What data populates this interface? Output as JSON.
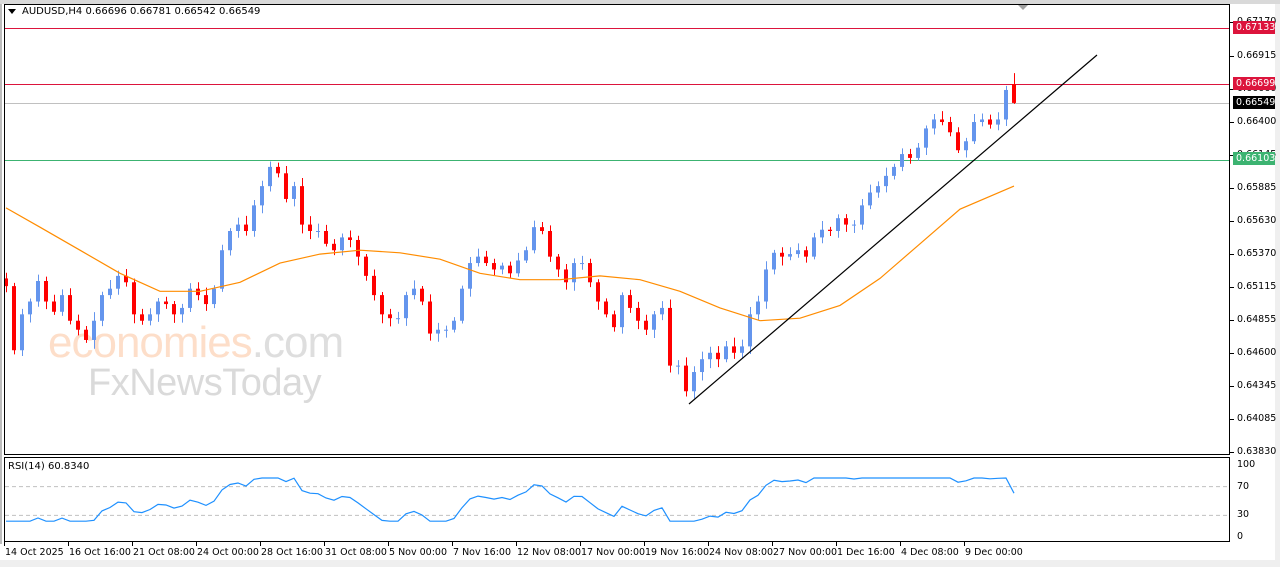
{
  "header": {
    "symbol_line": "AUDUSD,H4  0.66696 0.66781 0.66542 0.66549"
  },
  "watermark": {
    "line1_main": "economies",
    "line1_suffix": ".com",
    "line2": "FxNewsToday"
  },
  "price_axis": {
    "ticks": [
      "0.67170",
      "0.66915",
      "0.66660",
      "0.66400",
      "0.66145",
      "0.65885",
      "0.65630",
      "0.65370",
      "0.65115",
      "0.64855",
      "0.64600",
      "0.64345",
      "0.64085",
      "0.63830"
    ],
    "tags": [
      {
        "label": "0.67133",
        "color": "#dc143c"
      },
      {
        "label": "0.66699",
        "color": "#dc143c"
      },
      {
        "label": "0.66549",
        "color": "#000000"
      },
      {
        "label": "0.66103",
        "color": "#3cb371"
      }
    ]
  },
  "rsi": {
    "title": "RSI(14) 60.8340",
    "axis": [
      "100",
      "70",
      "30",
      "0"
    ]
  },
  "time_axis": {
    "labels": [
      "14 Oct 2025",
      "16 Oct 16:00",
      "21 Oct 08:00",
      "24 Oct 00:00",
      "28 Oct 16:00",
      "31 Oct 08:00",
      "5 Nov 00:00",
      "7 Nov 16:00",
      "12 Nov 08:00",
      "17 Nov 00:00",
      "19 Nov 16:00",
      "24 Nov 08:00",
      "27 Nov 00:00",
      "1 Dec 16:00",
      "4 Dec 08:00",
      "9 Dec 00:00"
    ]
  },
  "colors": {
    "bull": "#6495ed",
    "bear": "#ff0000",
    "ma": "#ff8c00",
    "rsi": "#1e90ff",
    "resistance": "#dc143c",
    "support": "#3cb371",
    "current": "#c0c0c0",
    "trendline": "#000000"
  },
  "chart_data": {
    "type": "candlestick",
    "title": "AUDUSD,H4",
    "ohlc_last": {
      "open": 0.66696,
      "high": 0.66781,
      "low": 0.66542,
      "close": 0.66549
    },
    "ylim": [
      0.6383,
      0.672
    ],
    "x_labels": [
      "14 Oct 2025",
      "16 Oct 16:00",
      "21 Oct 08:00",
      "24 Oct 00:00",
      "28 Oct 16:00",
      "31 Oct 08:00",
      "5 Nov 00:00",
      "7 Nov 16:00",
      "12 Nov 08:00",
      "17 Nov 00:00",
      "19 Nov 16:00",
      "24 Nov 08:00",
      "27 Nov 00:00",
      "1 Dec 16:00",
      "4 Dec 08:00",
      "9 Dec 00:00"
    ],
    "horizontal_levels": [
      {
        "price": 0.67133,
        "color": "#dc143c",
        "role": "resistance"
      },
      {
        "price": 0.66699,
        "color": "#dc143c",
        "role": "resistance"
      },
      {
        "price": 0.66549,
        "color": "#c0c0c0",
        "role": "current price"
      },
      {
        "price": 0.66103,
        "color": "#3cb371",
        "role": "support"
      }
    ],
    "trendline": {
      "from": {
        "x_label": "19 Nov 16:00",
        "price": 0.642
      },
      "to": {
        "x_label": "after 9 Dec",
        "price": 0.669
      }
    },
    "close_path": [
      [
        6,
        0.6512
      ],
      [
        14,
        0.6462
      ],
      [
        22,
        0.649
      ],
      [
        30,
        0.65
      ],
      [
        38,
        0.6516
      ],
      [
        46,
        0.65
      ],
      [
        54,
        0.6492
      ],
      [
        62,
        0.6505
      ],
      [
        70,
        0.6485
      ],
      [
        78,
        0.6478
      ],
      [
        86,
        0.647
      ],
      [
        94,
        0.6485
      ],
      [
        102,
        0.6505
      ],
      [
        110,
        0.651
      ],
      [
        118,
        0.652
      ],
      [
        126,
        0.6515
      ],
      [
        134,
        0.649
      ],
      [
        142,
        0.6485
      ],
      [
        150,
        0.649
      ],
      [
        158,
        0.65
      ],
      [
        166,
        0.6498
      ],
      [
        174,
        0.649
      ],
      [
        182,
        0.6495
      ],
      [
        190,
        0.651
      ],
      [
        198,
        0.6505
      ],
      [
        206,
        0.6498
      ],
      [
        214,
        0.651
      ],
      [
        222,
        0.654
      ],
      [
        230,
        0.6555
      ],
      [
        238,
        0.656
      ],
      [
        246,
        0.6555
      ],
      [
        254,
        0.6575
      ],
      [
        262,
        0.659
      ],
      [
        270,
        0.6605
      ],
      [
        278,
        0.66
      ],
      [
        286,
        0.658
      ],
      [
        294,
        0.659
      ],
      [
        302,
        0.656
      ],
      [
        310,
        0.6555
      ],
      [
        318,
        0.6555
      ],
      [
        326,
        0.6545
      ],
      [
        334,
        0.654
      ],
      [
        342,
        0.655
      ],
      [
        350,
        0.6548
      ],
      [
        358,
        0.6535
      ],
      [
        366,
        0.652
      ],
      [
        374,
        0.6505
      ],
      [
        382,
        0.649
      ],
      [
        390,
        0.6487
      ],
      [
        398,
        0.6487
      ],
      [
        406,
        0.6505
      ],
      [
        414,
        0.651
      ],
      [
        422,
        0.65
      ],
      [
        430,
        0.6475
      ],
      [
        438,
        0.6478
      ],
      [
        446,
        0.6478
      ],
      [
        454,
        0.6485
      ],
      [
        462,
        0.651
      ],
      [
        470,
        0.653
      ],
      [
        478,
        0.6535
      ],
      [
        486,
        0.653
      ],
      [
        494,
        0.6525
      ],
      [
        502,
        0.6528
      ],
      [
        510,
        0.6522
      ],
      [
        518,
        0.6532
      ],
      [
        526,
        0.654
      ],
      [
        534,
        0.6558
      ],
      [
        542,
        0.6555
      ],
      [
        550,
        0.6535
      ],
      [
        558,
        0.6525
      ],
      [
        566,
        0.6515
      ],
      [
        574,
        0.653
      ],
      [
        582,
        0.653
      ],
      [
        590,
        0.6515
      ],
      [
        598,
        0.65
      ],
      [
        606,
        0.649
      ],
      [
        614,
        0.648
      ],
      [
        622,
        0.6505
      ],
      [
        630,
        0.6495
      ],
      [
        638,
        0.6485
      ],
      [
        646,
        0.6478
      ],
      [
        654,
        0.649
      ],
      [
        662,
        0.6495
      ],
      [
        670,
        0.645
      ],
      [
        678,
        0.645
      ],
      [
        686,
        0.643
      ],
      [
        694,
        0.6445
      ],
      [
        702,
        0.6455
      ],
      [
        710,
        0.646
      ],
      [
        718,
        0.6455
      ],
      [
        726,
        0.6465
      ],
      [
        734,
        0.646
      ],
      [
        742,
        0.6465
      ],
      [
        750,
        0.649
      ],
      [
        758,
        0.65
      ],
      [
        766,
        0.6525
      ],
      [
        774,
        0.6538
      ],
      [
        782,
        0.6535
      ],
      [
        790,
        0.6537
      ],
      [
        798,
        0.654
      ],
      [
        806,
        0.6535
      ],
      [
        814,
        0.655
      ],
      [
        822,
        0.6556
      ],
      [
        830,
        0.6555
      ],
      [
        838,
        0.6565
      ],
      [
        846,
        0.656
      ],
      [
        854,
        0.656
      ],
      [
        862,
        0.6575
      ],
      [
        870,
        0.6585
      ],
      [
        878,
        0.659
      ],
      [
        886,
        0.6598
      ],
      [
        894,
        0.6605
      ],
      [
        902,
        0.6615
      ],
      [
        910,
        0.6612
      ],
      [
        918,
        0.662
      ],
      [
        926,
        0.6635
      ],
      [
        934,
        0.6642
      ],
      [
        942,
        0.664
      ],
      [
        950,
        0.6632
      ],
      [
        958,
        0.6618
      ],
      [
        966,
        0.6625
      ],
      [
        974,
        0.664
      ],
      [
        982,
        0.6642
      ],
      [
        990,
        0.6638
      ],
      [
        998,
        0.6642
      ],
      [
        1006,
        0.6665
      ],
      [
        1014,
        0.66549
      ]
    ],
    "moving_average": {
      "color": "#ff8c00",
      "approx_points": [
        [
          6,
          0.6573
        ],
        [
          40,
          0.6558
        ],
        [
          80,
          0.654
        ],
        [
          120,
          0.6522
        ],
        [
          160,
          0.6508
        ],
        [
          200,
          0.6508
        ],
        [
          240,
          0.6515
        ],
        [
          280,
          0.653
        ],
        [
          320,
          0.6537
        ],
        [
          360,
          0.654
        ],
        [
          400,
          0.6538
        ],
        [
          440,
          0.6533
        ],
        [
          480,
          0.6522
        ],
        [
          520,
          0.6517
        ],
        [
          560,
          0.6517
        ],
        [
          600,
          0.652
        ],
        [
          640,
          0.6517
        ],
        [
          680,
          0.6508
        ],
        [
          720,
          0.6495
        ],
        [
          760,
          0.6485
        ],
        [
          800,
          0.6487
        ],
        [
          840,
          0.6497
        ],
        [
          880,
          0.6518
        ],
        [
          920,
          0.6545
        ],
        [
          960,
          0.6572
        ],
        [
          1014,
          0.659
        ]
      ]
    },
    "rsi_series": {
      "name": "RSI(14)",
      "last": 60.834,
      "levels": [
        70,
        30
      ],
      "ylim": [
        0,
        100
      ]
    }
  }
}
